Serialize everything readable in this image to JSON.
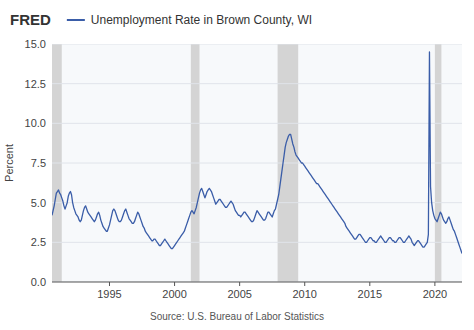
{
  "chart_data": {
    "type": "line",
    "title": "Unemployment Rate in Brown County, WI",
    "ylabel": "Percent",
    "source": "Source: U.S. Bureau of Labor Statistics",
    "annotations": [
      "FRED"
    ],
    "grid": true,
    "xlim": [
      1990.583,
      2022.083
    ],
    "xticks": [
      1995,
      2000,
      2005,
      2010,
      2015,
      2020
    ],
    "ylim": [
      0.0,
      15.0
    ],
    "yticks": [
      {
        "value": 0.0,
        "label": "0.0"
      },
      2.5,
      {
        "value": 5.0,
        "label": "5.0"
      },
      7.5,
      {
        "value": 10.0,
        "label": "10.0"
      },
      12.5,
      {
        "value": 15.0,
        "label": "15.0"
      }
    ],
    "recession_shading": [
      [
        1990.583,
        1991.333
      ],
      [
        2001.25,
        2001.916
      ],
      [
        2007.916,
        2009.5
      ],
      [
        2020.0,
        2020.5
      ]
    ],
    "x": [
      1990.583,
      1990.667,
      1990.75,
      1990.833,
      1990.917,
      1991.0,
      1991.083,
      1991.167,
      1991.25,
      1991.333,
      1991.417,
      1991.5,
      1991.583,
      1991.667,
      1991.75,
      1991.833,
      1991.917,
      1992.0,
      1992.083,
      1992.167,
      1992.25,
      1992.333,
      1992.417,
      1992.5,
      1992.583,
      1992.667,
      1992.75,
      1992.833,
      1992.917,
      1993.0,
      1993.083,
      1993.167,
      1993.25,
      1993.333,
      1993.417,
      1993.5,
      1993.583,
      1993.667,
      1993.75,
      1993.833,
      1993.917,
      1994.0,
      1994.083,
      1994.167,
      1994.25,
      1994.333,
      1994.417,
      1994.5,
      1994.583,
      1994.667,
      1994.75,
      1994.833,
      1994.917,
      1995.0,
      1995.083,
      1995.167,
      1995.25,
      1995.333,
      1995.417,
      1995.5,
      1995.583,
      1995.667,
      1995.75,
      1995.833,
      1995.917,
      1996.0,
      1996.083,
      1996.167,
      1996.25,
      1996.333,
      1996.417,
      1996.5,
      1996.583,
      1996.667,
      1996.75,
      1996.833,
      1996.917,
      1997.0,
      1997.083,
      1997.167,
      1997.25,
      1997.333,
      1997.417,
      1997.5,
      1997.583,
      1997.667,
      1997.75,
      1997.833,
      1997.917,
      1998.0,
      1998.083,
      1998.167,
      1998.25,
      1998.333,
      1998.417,
      1998.5,
      1998.583,
      1998.667,
      1998.75,
      1998.833,
      1998.917,
      1999.0,
      1999.083,
      1999.167,
      1999.25,
      1999.333,
      1999.417,
      1999.5,
      1999.583,
      1999.667,
      1999.75,
      1999.833,
      1999.917,
      2000.0,
      2000.083,
      2000.167,
      2000.25,
      2000.333,
      2000.417,
      2000.5,
      2000.583,
      2000.667,
      2000.75,
      2000.833,
      2000.917,
      2001.0,
      2001.083,
      2001.167,
      2001.25,
      2001.333,
      2001.417,
      2001.5,
      2001.583,
      2001.667,
      2001.75,
      2001.833,
      2001.917,
      2002.0,
      2002.083,
      2002.167,
      2002.25,
      2002.333,
      2002.417,
      2002.5,
      2002.583,
      2002.667,
      2002.75,
      2002.833,
      2002.917,
      2003.0,
      2003.083,
      2003.167,
      2003.25,
      2003.333,
      2003.417,
      2003.5,
      2003.583,
      2003.667,
      2003.75,
      2003.833,
      2003.917,
      2004.0,
      2004.083,
      2004.167,
      2004.25,
      2004.333,
      2004.417,
      2004.5,
      2004.583,
      2004.667,
      2004.75,
      2004.833,
      2004.917,
      2005.0,
      2005.083,
      2005.167,
      2005.25,
      2005.333,
      2005.417,
      2005.5,
      2005.583,
      2005.667,
      2005.75,
      2005.833,
      2005.917,
      2006.0,
      2006.083,
      2006.167,
      2006.25,
      2006.333,
      2006.417,
      2006.5,
      2006.583,
      2006.667,
      2006.75,
      2006.833,
      2006.917,
      2007.0,
      2007.083,
      2007.167,
      2007.25,
      2007.333,
      2007.417,
      2007.5,
      2007.583,
      2007.667,
      2007.75,
      2007.833,
      2007.917,
      2008.0,
      2008.083,
      2008.167,
      2008.25,
      2008.333,
      2008.417,
      2008.5,
      2008.583,
      2008.667,
      2008.75,
      2008.833,
      2008.917,
      2009.0,
      2009.083,
      2009.167,
      2009.25,
      2009.333,
      2009.417,
      2009.5,
      2009.583,
      2009.667,
      2009.75,
      2009.833,
      2009.917,
      2010.0,
      2010.083,
      2010.167,
      2010.25,
      2010.333,
      2010.417,
      2010.5,
      2010.583,
      2010.667,
      2010.75,
      2010.833,
      2010.917,
      2011.0,
      2011.083,
      2011.167,
      2011.25,
      2011.333,
      2011.417,
      2011.5,
      2011.583,
      2011.667,
      2011.75,
      2011.833,
      2011.917,
      2012.0,
      2012.083,
      2012.167,
      2012.25,
      2012.333,
      2012.417,
      2012.5,
      2012.583,
      2012.667,
      2012.75,
      2012.833,
      2012.917,
      2013.0,
      2013.083,
      2013.167,
      2013.25,
      2013.333,
      2013.417,
      2013.5,
      2013.583,
      2013.667,
      2013.75,
      2013.833,
      2013.917,
      2014.0,
      2014.083,
      2014.167,
      2014.25,
      2014.333,
      2014.417,
      2014.5,
      2014.583,
      2014.667,
      2014.75,
      2014.833,
      2014.917,
      2015.0,
      2015.083,
      2015.167,
      2015.25,
      2015.333,
      2015.417,
      2015.5,
      2015.583,
      2015.667,
      2015.75,
      2015.833,
      2015.917,
      2016.0,
      2016.083,
      2016.167,
      2016.25,
      2016.333,
      2016.417,
      2016.5,
      2016.583,
      2016.667,
      2016.75,
      2016.833,
      2016.917,
      2017.0,
      2017.083,
      2017.167,
      2017.25,
      2017.333,
      2017.417,
      2017.5,
      2017.583,
      2017.667,
      2017.75,
      2017.833,
      2017.917,
      2018.0,
      2018.083,
      2018.167,
      2018.25,
      2018.333,
      2018.417,
      2018.5,
      2018.583,
      2018.667,
      2018.75,
      2018.833,
      2018.917,
      2019.0,
      2019.083,
      2019.167,
      2019.25,
      2019.333,
      2019.417,
      2019.5,
      2019.583,
      2019.667,
      2019.75,
      2019.833,
      2019.917,
      2020.0,
      2020.083,
      2020.167,
      2020.25,
      2020.333,
      2020.417,
      2020.5,
      2020.583,
      2020.667,
      2020.75,
      2020.833,
      2020.917,
      2021.0,
      2021.083,
      2021.167,
      2021.25,
      2021.333,
      2021.417,
      2021.5,
      2021.583,
      2021.667,
      2021.75,
      2021.833,
      2021.917,
      2022.0,
      2022.083
    ],
    "series": [
      {
        "color": "#3a5da8",
        "values": [
          4.2,
          4.5,
          4.8,
          5.2,
          5.6,
          5.7,
          5.8,
          5.6,
          5.5,
          5.3,
          5.1,
          4.8,
          4.6,
          4.8,
          5.0,
          5.4,
          5.6,
          5.7,
          5.5,
          5.0,
          4.7,
          4.5,
          4.3,
          4.2,
          4.1,
          3.9,
          3.8,
          3.9,
          4.2,
          4.5,
          4.7,
          4.8,
          4.6,
          4.4,
          4.3,
          4.2,
          4.1,
          4.0,
          3.9,
          3.8,
          3.9,
          4.1,
          4.3,
          4.4,
          4.2,
          3.9,
          3.7,
          3.5,
          3.4,
          3.3,
          3.2,
          3.2,
          3.4,
          3.6,
          3.9,
          4.2,
          4.5,
          4.6,
          4.5,
          4.3,
          4.1,
          3.9,
          3.8,
          3.8,
          3.9,
          4.1,
          4.3,
          4.5,
          4.6,
          4.4,
          4.2,
          4.0,
          3.9,
          3.8,
          3.7,
          3.7,
          3.8,
          4.0,
          4.2,
          4.4,
          4.3,
          4.1,
          3.9,
          3.7,
          3.5,
          3.4,
          3.2,
          3.1,
          3.0,
          2.9,
          2.8,
          2.7,
          2.6,
          2.6,
          2.7,
          2.7,
          2.6,
          2.5,
          2.4,
          2.3,
          2.3,
          2.4,
          2.5,
          2.6,
          2.7,
          2.6,
          2.5,
          2.4,
          2.3,
          2.2,
          2.1,
          2.1,
          2.2,
          2.3,
          2.4,
          2.5,
          2.6,
          2.7,
          2.8,
          2.9,
          3.0,
          3.1,
          3.2,
          3.4,
          3.6,
          3.8,
          4.0,
          4.2,
          4.4,
          4.5,
          4.4,
          4.3,
          4.5,
          4.7,
          5.0,
          5.3,
          5.6,
          5.8,
          5.9,
          5.7,
          5.5,
          5.3,
          5.5,
          5.7,
          5.8,
          5.9,
          5.8,
          5.7,
          5.5,
          5.3,
          5.1,
          4.9,
          5.0,
          5.1,
          5.2,
          5.2,
          5.1,
          5.0,
          4.9,
          4.8,
          4.7,
          4.7,
          4.8,
          4.9,
          5.0,
          5.1,
          5.0,
          4.9,
          4.7,
          4.5,
          4.4,
          4.3,
          4.2,
          4.2,
          4.1,
          4.2,
          4.3,
          4.4,
          4.4,
          4.3,
          4.2,
          4.1,
          4.0,
          3.9,
          3.8,
          3.8,
          3.9,
          4.1,
          4.3,
          4.5,
          4.4,
          4.3,
          4.2,
          4.1,
          4.0,
          3.9,
          3.9,
          4.0,
          4.2,
          4.4,
          4.4,
          4.3,
          4.2,
          4.1,
          4.3,
          4.5,
          4.6,
          4.9,
          5.2,
          5.5,
          6.0,
          6.5,
          7.0,
          7.5,
          8.0,
          8.5,
          8.8,
          9.0,
          9.2,
          9.3,
          9.3,
          9.0,
          8.7,
          8.5,
          8.2,
          8.0,
          7.9,
          7.8,
          7.7,
          7.6,
          7.5,
          7.5,
          7.4,
          7.3,
          7.2,
          7.1,
          7.0,
          6.9,
          6.8,
          6.7,
          6.6,
          6.5,
          6.4,
          6.3,
          6.2,
          6.2,
          6.1,
          6.0,
          5.9,
          5.8,
          5.7,
          5.6,
          5.5,
          5.4,
          5.3,
          5.2,
          5.1,
          5.0,
          4.9,
          4.8,
          4.7,
          4.6,
          4.5,
          4.4,
          4.3,
          4.2,
          4.1,
          4.0,
          3.9,
          3.8,
          3.7,
          3.5,
          3.4,
          3.3,
          3.2,
          3.1,
          3.0,
          2.9,
          2.8,
          2.7,
          2.7,
          2.8,
          2.9,
          3.0,
          3.0,
          2.9,
          2.8,
          2.7,
          2.6,
          2.5,
          2.5,
          2.6,
          2.7,
          2.8,
          2.8,
          2.7,
          2.6,
          2.6,
          2.5,
          2.5,
          2.6,
          2.7,
          2.8,
          2.9,
          2.8,
          2.7,
          2.6,
          2.5,
          2.5,
          2.6,
          2.7,
          2.8,
          2.8,
          2.7,
          2.6,
          2.6,
          2.5,
          2.5,
          2.6,
          2.7,
          2.8,
          2.8,
          2.7,
          2.6,
          2.5,
          2.5,
          2.6,
          2.7,
          2.8,
          2.9,
          2.8,
          2.7,
          2.5,
          2.4,
          2.3,
          2.4,
          2.5,
          2.6,
          2.6,
          2.5,
          2.4,
          2.3,
          2.2,
          2.2,
          2.3,
          2.4,
          2.5,
          3.0,
          14.5,
          6.0,
          5.0,
          4.5,
          4.2,
          4.0,
          3.9,
          3.8,
          4.0,
          4.2,
          4.4,
          4.3,
          4.1,
          3.9,
          3.8,
          3.7,
          3.8,
          4.0,
          4.1,
          3.9,
          3.7,
          3.5,
          3.3,
          3.2,
          3.0,
          2.8,
          2.6,
          2.4,
          2.2,
          2.0,
          1.8
        ]
      }
    ]
  }
}
